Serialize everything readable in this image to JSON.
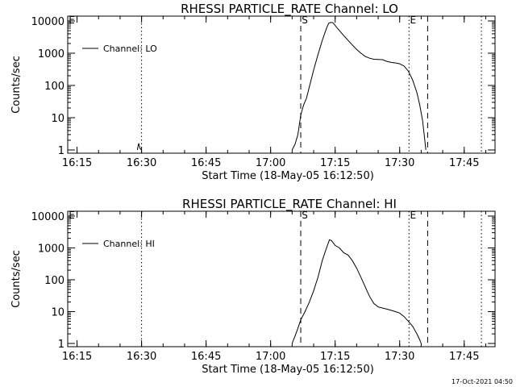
{
  "chart_data": [
    {
      "type": "line",
      "title": "RHESSI PARTICLE_RATE Channel: LO",
      "xlabel": "Start Time (18-May-05 16:12:50)",
      "ylabel": "Counts/sec",
      "yscale": "log",
      "xlim": [
        "16:12:50",
        "17:52:10"
      ],
      "ylim": [
        1,
        10000
      ],
      "xticks": [
        "16:15",
        "16:30",
        "16:45",
        "17:00",
        "17:15",
        "17:30",
        "17:45"
      ],
      "yticks": [
        "1",
        "10",
        "100",
        "1000",
        "10000"
      ],
      "legend": {
        "label": "Channel: LO",
        "placement": "top-left"
      },
      "markers": [
        {
          "label": "E",
          "time": "16:12:50",
          "style": "dotted"
        },
        {
          "label": "",
          "time": "16:30:00",
          "style": "dotted"
        },
        {
          "label": "S",
          "time": "17:07:00",
          "style": "dashed"
        },
        {
          "label": "E",
          "time": "17:32:10",
          "style": "dotted"
        },
        {
          "label": "",
          "time": "17:36:30",
          "style": "dashed"
        },
        {
          "label": "",
          "time": "17:49:00",
          "style": "dotted"
        }
      ],
      "series": [
        {
          "name": "Channel: LO",
          "points": [
            [
              "16:29:00",
              1
            ],
            [
              "16:29:20",
              1.6
            ],
            [
              "16:29:40",
              1.1
            ],
            [
              "16:30:00",
              1
            ],
            [
              "17:05:00",
              1
            ],
            [
              "17:05:40",
              1.5
            ],
            [
              "17:06:20",
              3
            ],
            [
              "17:07:00",
              12
            ],
            [
              "17:07:40",
              25
            ],
            [
              "17:08:20",
              40
            ],
            [
              "17:09:00",
              90
            ],
            [
              "17:10:00",
              300
            ],
            [
              "17:11:00",
              900
            ],
            [
              "17:12:00",
              2500
            ],
            [
              "17:13:00",
              6000
            ],
            [
              "17:13:30",
              8500
            ],
            [
              "17:14:00",
              9000
            ],
            [
              "17:14:30",
              8800
            ],
            [
              "17:15:30",
              6000
            ],
            [
              "17:17:00",
              3500
            ],
            [
              "17:18:00",
              2500
            ],
            [
              "17:19:00",
              1800
            ],
            [
              "17:20:00",
              1300
            ],
            [
              "17:21:00",
              1000
            ],
            [
              "17:22:00",
              800
            ],
            [
              "17:23:00",
              700
            ],
            [
              "17:24:00",
              650
            ],
            [
              "17:25:00",
              640
            ],
            [
              "17:26:00",
              630
            ],
            [
              "17:27:00",
              560
            ],
            [
              "17:28:00",
              520
            ],
            [
              "17:29:00",
              500
            ],
            [
              "17:30:00",
              470
            ],
            [
              "17:31:00",
              400
            ],
            [
              "17:32:00",
              280
            ],
            [
              "17:33:00",
              150
            ],
            [
              "17:34:00",
              60
            ],
            [
              "17:34:40",
              25
            ],
            [
              "17:35:20",
              8
            ],
            [
              "17:35:50",
              2
            ],
            [
              "17:36:05",
              1
            ]
          ]
        }
      ]
    },
    {
      "type": "line",
      "title": "RHESSI PARTICLE_RATE Channel: HI",
      "xlabel": "Start Time (18-May-05 16:12:50)",
      "ylabel": "Counts/sec",
      "yscale": "log",
      "xlim": [
        "16:12:50",
        "17:52:10"
      ],
      "ylim": [
        1,
        10000
      ],
      "xticks": [
        "16:15",
        "16:30",
        "16:45",
        "17:00",
        "17:15",
        "17:30",
        "17:45"
      ],
      "yticks": [
        "1",
        "10",
        "100",
        "1000",
        "10000"
      ],
      "legend": {
        "label": "Channel: HI",
        "placement": "top-left"
      },
      "markers": [
        {
          "label": "E",
          "time": "16:12:50",
          "style": "dotted"
        },
        {
          "label": "",
          "time": "16:30:00",
          "style": "dotted"
        },
        {
          "label": "S",
          "time": "17:07:00",
          "style": "dashed"
        },
        {
          "label": "E",
          "time": "17:32:10",
          "style": "dotted"
        },
        {
          "label": "",
          "time": "17:36:30",
          "style": "dashed"
        },
        {
          "label": "",
          "time": "17:49:00",
          "style": "dotted"
        }
      ],
      "series": [
        {
          "name": "Channel: HI",
          "points": [
            [
              "17:05:00",
              1
            ],
            [
              "17:05:40",
              1.7
            ],
            [
              "17:06:20",
              3
            ],
            [
              "17:07:00",
              5.5
            ],
            [
              "17:08:00",
              10
            ],
            [
              "17:09:00",
              20
            ],
            [
              "17:10:00",
              45
            ],
            [
              "17:11:00",
              120
            ],
            [
              "17:12:00",
              400
            ],
            [
              "17:13:00",
              1000
            ],
            [
              "17:13:40",
              1800
            ],
            [
              "17:14:10",
              1700
            ],
            [
              "17:15:00",
              1200
            ],
            [
              "17:16:00",
              1000
            ],
            [
              "17:17:00",
              700
            ],
            [
              "17:18:00",
              600
            ],
            [
              "17:19:00",
              400
            ],
            [
              "17:20:00",
              230
            ],
            [
              "17:21:00",
              120
            ],
            [
              "17:22:00",
              60
            ],
            [
              "17:23:00",
              30
            ],
            [
              "17:24:00",
              18
            ],
            [
              "17:25:00",
              14
            ],
            [
              "17:26:00",
              13
            ],
            [
              "17:27:00",
              12
            ],
            [
              "17:28:00",
              11
            ],
            [
              "17:29:00",
              10
            ],
            [
              "17:30:00",
              9
            ],
            [
              "17:31:00",
              7
            ],
            [
              "17:32:00",
              5
            ],
            [
              "17:33:00",
              3.5
            ],
            [
              "17:34:00",
              2
            ],
            [
              "17:34:40",
              1.3
            ],
            [
              "17:35:00",
              1
            ]
          ]
        }
      ]
    }
  ],
  "footer": {
    "timestamp": "17-Oct-2021 04:50"
  }
}
